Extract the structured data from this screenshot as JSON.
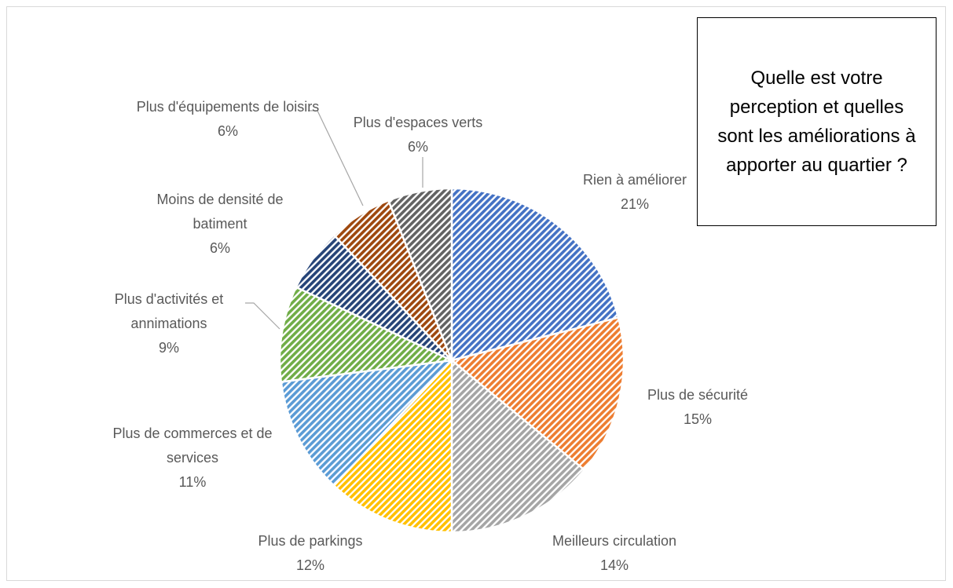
{
  "chart_data": {
    "type": "pie",
    "title": "Quelle est votre perception et quelles sont les améliorations à apporter au quartier ?",
    "categories": [
      "Rien à améliorer",
      "Plus de sécurité",
      "Meilleurs circulation",
      "Plus de parkings",
      "Plus de commerces et de services",
      "Plus d'activités et annimations",
      "Moins de densité de batiment",
      "Plus d'équipements de loisirs",
      "Plus d'espaces verts"
    ],
    "values": [
      21,
      15,
      14,
      12,
      11,
      9,
      6,
      6,
      6
    ],
    "value_labels": [
      "21%",
      "15%",
      "14%",
      "12%",
      "11%",
      "9%",
      "6%",
      "6%",
      "6%"
    ],
    "colors": [
      "#4472c4",
      "#ed7d31",
      "#a5a5a5",
      "#ffc000",
      "#5b9bd5",
      "#70ad47",
      "#264478",
      "#9e480e",
      "#636363"
    ]
  }
}
